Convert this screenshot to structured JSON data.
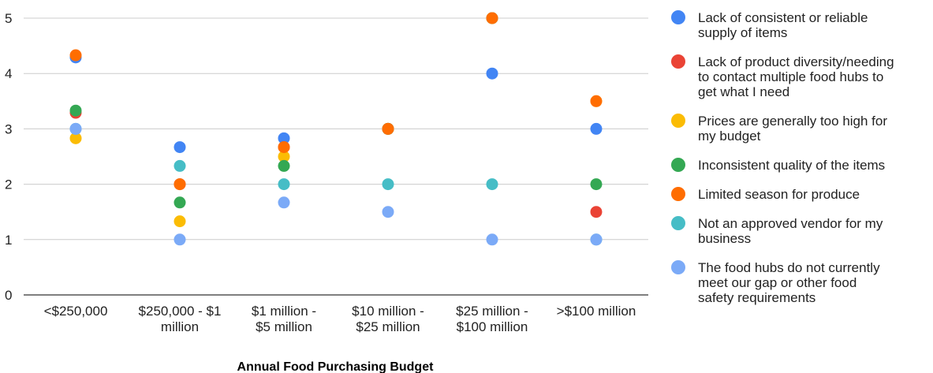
{
  "chart_data": {
    "type": "scatter",
    "title": "",
    "xlabel": "Annual Food Purchasing Budget",
    "ylabel": "",
    "ylim": [
      0,
      5
    ],
    "yticks": [
      "0",
      "1",
      "2",
      "3",
      "4",
      "5"
    ],
    "grid": true,
    "legend_position": "right",
    "categories": [
      [
        "<$250,000"
      ],
      [
        "$250,000 - $1",
        "million"
      ],
      [
        "$1 million -",
        "$5 million"
      ],
      [
        "$10 million -",
        "$25 million"
      ],
      [
        "$25 million -",
        "$100 million"
      ],
      [
        ">$100 million"
      ]
    ],
    "series": [
      {
        "name": "Lack of consistent or reliable supply of items",
        "legend_lines": [
          "Lack of consistent or reliable",
          "supply of items"
        ],
        "color": "#4285F4",
        "values": [
          4.29,
          2.67,
          2.83,
          3.0,
          4.0,
          3.0
        ]
      },
      {
        "name": "Lack of product diversity/needing to contact multiple food hubs to get what I need",
        "legend_lines": [
          "Lack of product diversity/needing",
          "to contact multiple food hubs to",
          "get what I need"
        ],
        "color": "#EA4335",
        "values": [
          3.29,
          2.0,
          2.67,
          3.0,
          5.0,
          1.5
        ]
      },
      {
        "name": "Prices are generally too high for my budget",
        "legend_lines": [
          "Prices are generally too high for",
          "my budget"
        ],
        "color": "#FBBC04",
        "values": [
          2.83,
          1.33,
          2.5,
          3.0,
          5.0,
          3.5
        ]
      },
      {
        "name": "Inconsistent quality of the items",
        "legend_lines": [
          "Inconsistent quality of the items"
        ],
        "color": "#34A853",
        "values": [
          3.33,
          1.67,
          2.33,
          3.0,
          5.0,
          2.0
        ]
      },
      {
        "name": "Limited season for produce",
        "legend_lines": [
          "Limited season for produce"
        ],
        "color": "#FF6D01",
        "values": [
          4.33,
          2.0,
          2.67,
          3.0,
          5.0,
          3.5
        ]
      },
      {
        "name": "Not an approved vendor for my business",
        "legend_lines": [
          "Not an approved vendor for my",
          "business"
        ],
        "color": "#46BDC6",
        "values": [
          3.0,
          2.33,
          2.0,
          2.0,
          2.0,
          1.0
        ]
      },
      {
        "name": "The food hubs do not currently meet our gap or other food safety requirements",
        "legend_lines": [
          "The food hubs do not currently",
          "meet our gap or other food",
          "safety requirements"
        ],
        "color": "#7BAAF7",
        "values": [
          3.0,
          1.0,
          1.67,
          1.5,
          1.0,
          1.0
        ]
      }
    ]
  }
}
